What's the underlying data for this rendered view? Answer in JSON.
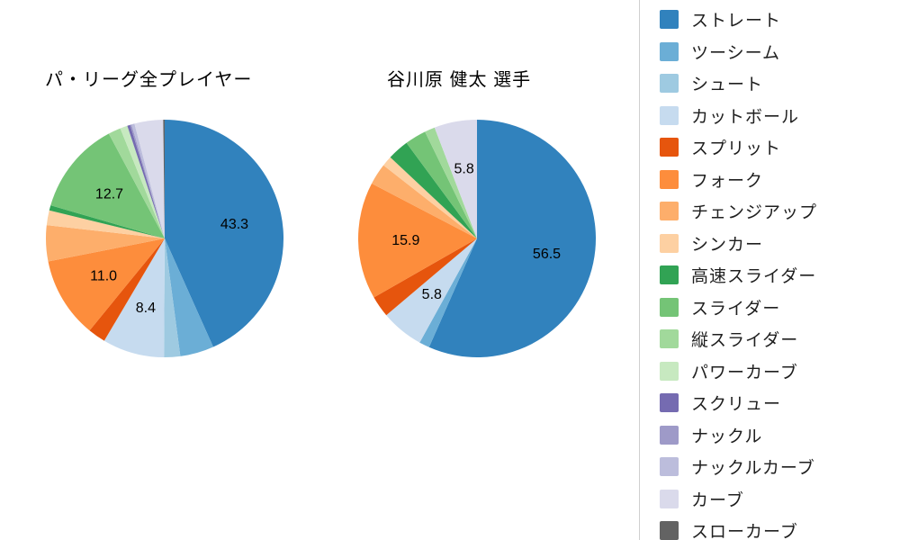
{
  "background": "#ffffff",
  "chart_data": [
    {
      "type": "pie",
      "title": "パ・リーグ全プレイヤー",
      "start_angle_deg": 90,
      "direction": "clockwise",
      "label_threshold_pct": 5,
      "label_distance": 0.6,
      "categories": [
        "ストレート",
        "ツーシーム",
        "シュート",
        "カットボール",
        "スプリット",
        "フォーク",
        "チェンジアップ",
        "シンカー",
        "高速スライダー",
        "スライダー",
        "縦スライダー",
        "パワーカーブ",
        "スクリュー",
        "ナックル",
        "ナックルカーブ",
        "カーブ",
        "スローカーブ"
      ],
      "values": [
        43.3,
        4.6,
        2.2,
        8.4,
        2.4,
        11.0,
        4.9,
        2.0,
        0.7,
        12.7,
        1.7,
        1.0,
        0.4,
        0.2,
        0.4,
        3.9,
        0.2
      ],
      "visible_labels": [
        "43.3",
        "8.4",
        "11.0",
        "12.7"
      ]
    },
    {
      "type": "pie",
      "title": "谷川原 健太  選手",
      "start_angle_deg": 90,
      "direction": "clockwise",
      "label_threshold_pct": 5,
      "label_distance": 0.6,
      "categories": [
        "ストレート",
        "ツーシーム",
        "シュート",
        "カットボール",
        "スプリット",
        "フォーク",
        "チェンジアップ",
        "シンカー",
        "高速スライダー",
        "スライダー",
        "縦スライダー",
        "パワーカーブ",
        "スクリュー",
        "ナックル",
        "ナックルカーブ",
        "カーブ",
        "スローカーブ"
      ],
      "values": [
        56.5,
        1.4,
        0,
        5.8,
        2.9,
        15.9,
        2.9,
        1.4,
        2.9,
        2.9,
        1.4,
        0,
        0,
        0,
        0,
        5.8,
        0
      ],
      "visible_labels": [
        "56.5",
        "5.8",
        "15.9",
        "5.8"
      ]
    }
  ],
  "legend": {
    "position": "right",
    "items": [
      {
        "label": "ストレート",
        "color": "#3182bd"
      },
      {
        "label": "ツーシーム",
        "color": "#6baed6"
      },
      {
        "label": "シュート",
        "color": "#9ecae1"
      },
      {
        "label": "カットボール",
        "color": "#c6dbef"
      },
      {
        "label": "スプリット",
        "color": "#e6550d"
      },
      {
        "label": "フォーク",
        "color": "#fd8d3c"
      },
      {
        "label": "チェンジアップ",
        "color": "#fdae6b"
      },
      {
        "label": "シンカー",
        "color": "#fdd0a2"
      },
      {
        "label": "高速スライダー",
        "color": "#31a354"
      },
      {
        "label": "スライダー",
        "color": "#74c476"
      },
      {
        "label": "縦スライダー",
        "color": "#a1d99b"
      },
      {
        "label": "パワーカーブ",
        "color": "#c7e9c0"
      },
      {
        "label": "スクリュー",
        "color": "#756bb1"
      },
      {
        "label": "ナックル",
        "color": "#9e9ac8"
      },
      {
        "label": "ナックルカーブ",
        "color": "#bcbddc"
      },
      {
        "label": "カーブ",
        "color": "#dadaeb"
      },
      {
        "label": "スローカーブ",
        "color": "#636363"
      }
    ]
  }
}
